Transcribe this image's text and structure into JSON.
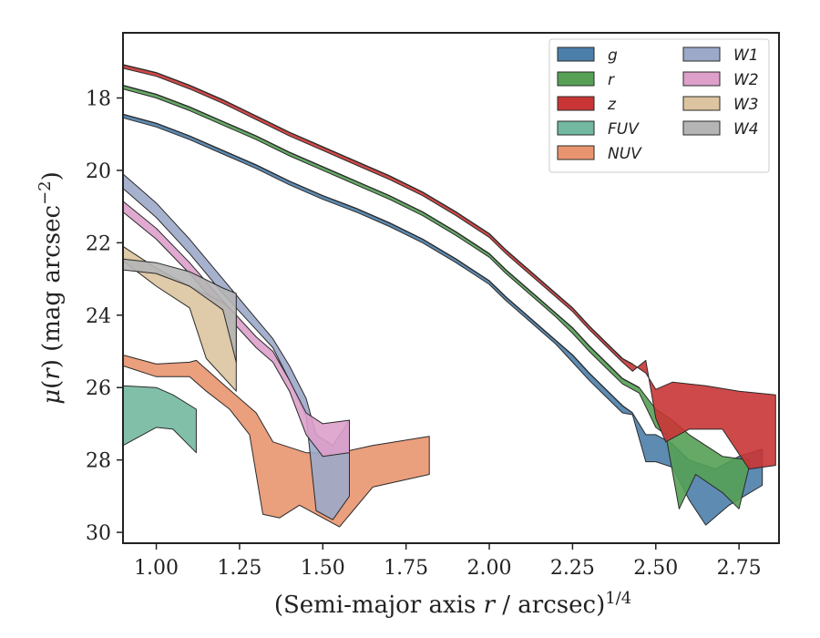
{
  "chart_data": {
    "type": "area",
    "xlabel": "(Semi-major axis r / arcsec)^1/4",
    "ylabel": "μ(r) (mag arcsec^−2)",
    "xlim": [
      0.9,
      2.87
    ],
    "ylim": [
      30.3,
      16.2
    ],
    "y_inverted": true,
    "xticks": [
      "1.00",
      "1.25",
      "1.50",
      "1.75",
      "2.00",
      "2.25",
      "2.50",
      "2.75"
    ],
    "yticks": [
      "18",
      "20",
      "22",
      "24",
      "26",
      "28",
      "30"
    ],
    "legend_position": "top-right",
    "legend_columns": 2,
    "series": [
      {
        "name": "g",
        "color": "#4c7eaa",
        "upper": [
          [
            0.9,
            18.45
          ],
          [
            1.0,
            18.7
          ],
          [
            1.1,
            19.05
          ],
          [
            1.2,
            19.45
          ],
          [
            1.3,
            19.85
          ],
          [
            1.4,
            20.3
          ],
          [
            1.5,
            20.7
          ],
          [
            1.6,
            21.05
          ],
          [
            1.7,
            21.45
          ],
          [
            1.8,
            21.9
          ],
          [
            1.9,
            22.45
          ],
          [
            2.0,
            23.05
          ],
          [
            2.05,
            23.5
          ],
          [
            2.1,
            23.9
          ],
          [
            2.15,
            24.3
          ],
          [
            2.2,
            24.7
          ],
          [
            2.25,
            25.1
          ],
          [
            2.3,
            25.6
          ],
          [
            2.35,
            26.05
          ],
          [
            2.4,
            26.5
          ],
          [
            2.43,
            26.7
          ],
          [
            2.47,
            27.3
          ],
          [
            2.5,
            27.3
          ],
          [
            2.55,
            27.55
          ],
          [
            2.6,
            28.0
          ],
          [
            2.68,
            28.25
          ],
          [
            2.75,
            27.9
          ],
          [
            2.82,
            27.7
          ]
        ],
        "lower": [
          [
            0.9,
            18.55
          ],
          [
            1.0,
            18.8
          ],
          [
            1.1,
            19.15
          ],
          [
            1.2,
            19.55
          ],
          [
            1.3,
            19.95
          ],
          [
            1.4,
            20.4
          ],
          [
            1.5,
            20.8
          ],
          [
            1.6,
            21.15
          ],
          [
            1.7,
            21.55
          ],
          [
            1.8,
            22.0
          ],
          [
            1.9,
            22.55
          ],
          [
            2.0,
            23.15
          ],
          [
            2.05,
            23.6
          ],
          [
            2.1,
            24.0
          ],
          [
            2.15,
            24.4
          ],
          [
            2.2,
            24.8
          ],
          [
            2.25,
            25.3
          ],
          [
            2.3,
            25.8
          ],
          [
            2.35,
            26.25
          ],
          [
            2.4,
            26.7
          ],
          [
            2.43,
            26.75
          ],
          [
            2.47,
            28.05
          ],
          [
            2.5,
            28.05
          ],
          [
            2.55,
            28.2
          ],
          [
            2.6,
            29.1
          ],
          [
            2.65,
            29.8
          ],
          [
            2.72,
            29.25
          ],
          [
            2.82,
            28.7
          ]
        ]
      },
      {
        "name": "r",
        "color": "#55a055",
        "upper": [
          [
            0.9,
            17.65
          ],
          [
            1.0,
            17.9
          ],
          [
            1.1,
            18.25
          ],
          [
            1.2,
            18.65
          ],
          [
            1.3,
            19.05
          ],
          [
            1.4,
            19.5
          ],
          [
            1.5,
            19.9
          ],
          [
            1.6,
            20.3
          ],
          [
            1.7,
            20.7
          ],
          [
            1.8,
            21.15
          ],
          [
            1.9,
            21.7
          ],
          [
            2.0,
            22.3
          ],
          [
            2.05,
            22.75
          ],
          [
            2.1,
            23.15
          ],
          [
            2.15,
            23.55
          ],
          [
            2.2,
            23.95
          ],
          [
            2.25,
            24.35
          ],
          [
            2.3,
            24.85
          ],
          [
            2.35,
            25.3
          ],
          [
            2.4,
            25.75
          ],
          [
            2.45,
            26.0
          ],
          [
            2.5,
            26.6
          ],
          [
            2.55,
            26.9
          ],
          [
            2.6,
            27.3
          ],
          [
            2.7,
            27.9
          ],
          [
            2.78,
            28.0
          ]
        ],
        "lower": [
          [
            0.9,
            17.75
          ],
          [
            1.0,
            18.0
          ],
          [
            1.1,
            18.35
          ],
          [
            1.2,
            18.75
          ],
          [
            1.3,
            19.15
          ],
          [
            1.4,
            19.6
          ],
          [
            1.5,
            20.0
          ],
          [
            1.6,
            20.4
          ],
          [
            1.7,
            20.8
          ],
          [
            1.8,
            21.25
          ],
          [
            1.9,
            21.8
          ],
          [
            2.0,
            22.4
          ],
          [
            2.05,
            22.85
          ],
          [
            2.1,
            23.25
          ],
          [
            2.15,
            23.65
          ],
          [
            2.2,
            24.05
          ],
          [
            2.25,
            24.5
          ],
          [
            2.3,
            25.0
          ],
          [
            2.35,
            25.45
          ],
          [
            2.4,
            25.9
          ],
          [
            2.45,
            26.15
          ],
          [
            2.5,
            27.1
          ],
          [
            2.53,
            27.3
          ],
          [
            2.57,
            29.35
          ],
          [
            2.62,
            28.4
          ],
          [
            2.7,
            28.9
          ],
          [
            2.75,
            29.35
          ],
          [
            2.78,
            28.2
          ]
        ]
      },
      {
        "name": "z",
        "color": "#c93535",
        "upper": [
          [
            0.9,
            17.08
          ],
          [
            1.0,
            17.3
          ],
          [
            1.1,
            17.65
          ],
          [
            1.2,
            18.05
          ],
          [
            1.3,
            18.5
          ],
          [
            1.4,
            18.95
          ],
          [
            1.5,
            19.35
          ],
          [
            1.6,
            19.75
          ],
          [
            1.7,
            20.15
          ],
          [
            1.8,
            20.6
          ],
          [
            1.9,
            21.15
          ],
          [
            2.0,
            21.75
          ],
          [
            2.05,
            22.2
          ],
          [
            2.1,
            22.6
          ],
          [
            2.15,
            23.0
          ],
          [
            2.2,
            23.4
          ],
          [
            2.25,
            23.8
          ],
          [
            2.3,
            24.3
          ],
          [
            2.35,
            24.75
          ],
          [
            2.4,
            25.2
          ],
          [
            2.43,
            25.35
          ],
          [
            2.47,
            25.6
          ],
          [
            2.5,
            26.05
          ],
          [
            2.55,
            25.85
          ],
          [
            2.65,
            25.95
          ],
          [
            2.75,
            26.1
          ],
          [
            2.86,
            26.2
          ]
        ],
        "lower": [
          [
            0.9,
            17.18
          ],
          [
            1.0,
            17.4
          ],
          [
            1.1,
            17.75
          ],
          [
            1.2,
            18.15
          ],
          [
            1.3,
            18.6
          ],
          [
            1.4,
            19.05
          ],
          [
            1.5,
            19.45
          ],
          [
            1.6,
            19.85
          ],
          [
            1.7,
            20.25
          ],
          [
            1.8,
            20.7
          ],
          [
            1.9,
            21.25
          ],
          [
            2.0,
            21.85
          ],
          [
            2.05,
            22.3
          ],
          [
            2.1,
            22.7
          ],
          [
            2.15,
            23.1
          ],
          [
            2.2,
            23.5
          ],
          [
            2.25,
            23.9
          ],
          [
            2.3,
            24.4
          ],
          [
            2.35,
            24.85
          ],
          [
            2.4,
            25.3
          ],
          [
            2.43,
            25.55
          ],
          [
            2.47,
            25.25
          ],
          [
            2.5,
            26.85
          ],
          [
            2.53,
            27.5
          ],
          [
            2.6,
            27.15
          ],
          [
            2.7,
            27.15
          ],
          [
            2.78,
            28.25
          ],
          [
            2.86,
            28.15
          ]
        ]
      },
      {
        "name": "FUV",
        "color": "#73b8a0",
        "upper": [
          [
            0.9,
            25.95
          ],
          [
            1.0,
            26.0
          ],
          [
            1.05,
            26.2
          ],
          [
            1.12,
            26.6
          ]
        ],
        "lower": [
          [
            0.9,
            27.6
          ],
          [
            1.0,
            27.1
          ],
          [
            1.05,
            27.15
          ],
          [
            1.12,
            27.8
          ]
        ]
      },
      {
        "name": "NUV",
        "color": "#e8956f",
        "upper": [
          [
            0.9,
            25.1
          ],
          [
            1.0,
            25.35
          ],
          [
            1.1,
            25.3
          ],
          [
            1.12,
            25.25
          ],
          [
            1.2,
            25.9
          ],
          [
            1.3,
            26.7
          ],
          [
            1.35,
            27.5
          ],
          [
            1.45,
            27.8
          ],
          [
            1.55,
            27.8
          ],
          [
            1.65,
            27.6
          ],
          [
            1.82,
            27.35
          ]
        ],
        "lower": [
          [
            0.9,
            25.4
          ],
          [
            1.0,
            25.7
          ],
          [
            1.1,
            25.7
          ],
          [
            1.15,
            26.1
          ],
          [
            1.22,
            26.6
          ],
          [
            1.28,
            27.3
          ],
          [
            1.32,
            29.5
          ],
          [
            1.37,
            29.6
          ],
          [
            1.43,
            29.25
          ],
          [
            1.55,
            29.85
          ],
          [
            1.65,
            28.75
          ],
          [
            1.82,
            28.4
          ]
        ]
      },
      {
        "name": "W1",
        "color": "#9ca9c9",
        "upper": [
          [
            0.9,
            20.1
          ],
          [
            1.0,
            20.9
          ],
          [
            1.1,
            21.9
          ],
          [
            1.2,
            23.0
          ],
          [
            1.3,
            24.1
          ],
          [
            1.35,
            24.65
          ],
          [
            1.4,
            25.4
          ],
          [
            1.45,
            26.3
          ],
          [
            1.48,
            27.3
          ],
          [
            1.53,
            27.6
          ],
          [
            1.58,
            26.9
          ]
        ],
        "lower": [
          [
            0.9,
            20.5
          ],
          [
            1.0,
            21.3
          ],
          [
            1.1,
            22.3
          ],
          [
            1.2,
            23.4
          ],
          [
            1.3,
            24.4
          ],
          [
            1.35,
            24.9
          ],
          [
            1.4,
            25.8
          ],
          [
            1.45,
            26.8
          ],
          [
            1.48,
            29.4
          ],
          [
            1.53,
            29.65
          ],
          [
            1.58,
            29.0
          ]
        ]
      },
      {
        "name": "W2",
        "color": "#dda0cb",
        "upper": [
          [
            0.9,
            20.85
          ],
          [
            1.0,
            21.6
          ],
          [
            1.1,
            22.55
          ],
          [
            1.2,
            23.6
          ],
          [
            1.3,
            24.6
          ],
          [
            1.35,
            25.0
          ],
          [
            1.4,
            25.8
          ],
          [
            1.45,
            26.7
          ],
          [
            1.5,
            27.0
          ],
          [
            1.58,
            26.9
          ]
        ],
        "lower": [
          [
            0.9,
            21.15
          ],
          [
            1.0,
            21.9
          ],
          [
            1.1,
            22.85
          ],
          [
            1.2,
            23.9
          ],
          [
            1.3,
            24.9
          ],
          [
            1.35,
            25.3
          ],
          [
            1.4,
            26.1
          ],
          [
            1.45,
            27.3
          ],
          [
            1.5,
            27.9
          ],
          [
            1.58,
            27.8
          ]
        ]
      },
      {
        "name": "W3",
        "color": "#dcc4a0",
        "upper": [
          [
            0.9,
            22.1
          ],
          [
            1.0,
            22.7
          ],
          [
            1.1,
            23.2
          ],
          [
            1.2,
            23.65
          ],
          [
            1.24,
            24.0
          ]
        ],
        "lower": [
          [
            0.9,
            22.5
          ],
          [
            1.0,
            23.2
          ],
          [
            1.1,
            23.8
          ],
          [
            1.15,
            25.2
          ],
          [
            1.24,
            26.1
          ]
        ]
      },
      {
        "name": "W4",
        "color": "#b5b5b5",
        "upper": [
          [
            0.9,
            22.45
          ],
          [
            1.0,
            22.55
          ],
          [
            1.1,
            22.8
          ],
          [
            1.2,
            23.25
          ],
          [
            1.24,
            23.4
          ]
        ],
        "lower": [
          [
            0.9,
            22.75
          ],
          [
            1.0,
            22.85
          ],
          [
            1.1,
            23.2
          ],
          [
            1.2,
            23.85
          ],
          [
            1.24,
            25.3
          ]
        ]
      }
    ]
  }
}
